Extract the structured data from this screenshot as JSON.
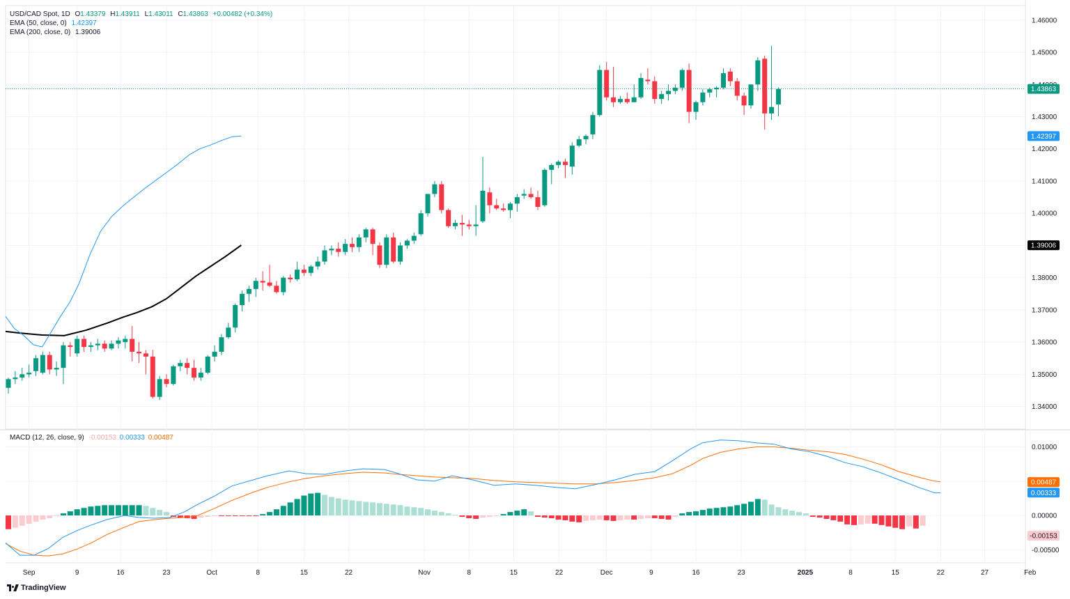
{
  "header": {
    "symbol": "USD/CAD Spot, 1D",
    "open_label": "O",
    "open": "1.43379",
    "high_label": "H",
    "high": "1.43911",
    "low_label": "L",
    "low": "1.43011",
    "close_label": "C",
    "close": "1.43863",
    "change": "+0.00482 (+0.34%)"
  },
  "ema50": {
    "label": "EMA (50, close, 0)",
    "value": "1.42397",
    "color": "#2196f3"
  },
  "ema200": {
    "label": "EMA (200, close, 0)",
    "value": "1.39006",
    "color": "#000000"
  },
  "macd": {
    "label": "MACD (12, 26, close, 9)",
    "hist_value": "-0.00153",
    "macd_value": "0.00333",
    "signal_value": "0.00487",
    "macd_color": "#2196f3",
    "signal_color": "#ff6d00"
  },
  "branding": "TradingView",
  "colors": {
    "up": "#089981",
    "down": "#f23645",
    "up_light": "#acdfd3",
    "down_light": "#fccbcd",
    "grid": "#f0f3fa"
  },
  "chart_data": {
    "type": "candlestick",
    "title": "USD/CAD Spot, 1D",
    "price_axis": {
      "ylim": [
        1.333,
        1.4645
      ],
      "ticks": [
        "1.46000",
        "1.45000",
        "1.44000",
        "1.43000",
        "1.42000",
        "1.41000",
        "1.40000",
        "1.39000",
        "1.38000",
        "1.37000",
        "1.36000",
        "1.35000",
        "1.34000"
      ]
    },
    "macd_axis": {
      "ylim": [
        -0.0067,
        0.0124
      ],
      "ticks": [
        "0.01000",
        "0.00500",
        "0.00000",
        "-0.00500"
      ]
    },
    "x_ticks": [
      "Sep",
      "9",
      "16",
      "23",
      "Oct",
      "8",
      "15",
      "22",
      "Nov",
      "8",
      "15",
      "22",
      "Dec",
      "9",
      "16",
      "23",
      "2025",
      "8",
      "15",
      "22",
      "27",
      "Feb"
    ],
    "last_price_label": "1.43863",
    "ema50_label": "1.42397",
    "ema200_label": "1.39006",
    "macd_hist_label": "-0.00153",
    "macd_label": "0.00333",
    "signal_label": "0.00487",
    "candles": [
      [
        1.3458,
        1.349,
        1.344,
        1.3485
      ],
      [
        1.3485,
        1.351,
        1.347,
        1.349
      ],
      [
        1.349,
        1.352,
        1.348,
        1.35
      ],
      [
        1.35,
        1.353,
        1.349,
        1.3505
      ],
      [
        1.351,
        1.356,
        1.3495,
        1.355
      ],
      [
        1.3505,
        1.357,
        1.35,
        1.356
      ],
      [
        1.356,
        1.357,
        1.35,
        1.3515
      ],
      [
        1.3515,
        1.354,
        1.3495,
        1.352
      ],
      [
        1.352,
        1.36,
        1.347,
        1.359
      ],
      [
        1.359,
        1.36,
        1.3555,
        1.3585
      ],
      [
        1.3565,
        1.362,
        1.3555,
        1.361
      ],
      [
        1.361,
        1.362,
        1.357,
        1.3585
      ],
      [
        1.3585,
        1.36,
        1.357,
        1.359
      ],
      [
        1.359,
        1.361,
        1.3575,
        1.3595
      ],
      [
        1.3595,
        1.3605,
        1.357,
        1.358
      ],
      [
        1.358,
        1.3605,
        1.3575,
        1.3595
      ],
      [
        1.3595,
        1.3615,
        1.358,
        1.3605
      ],
      [
        1.36,
        1.362,
        1.358,
        1.361
      ],
      [
        1.361,
        1.365,
        1.354,
        1.357
      ],
      [
        1.357,
        1.36,
        1.3535,
        1.3565
      ],
      [
        1.3565,
        1.3575,
        1.35,
        1.3555
      ],
      [
        1.3555,
        1.3575,
        1.3425,
        1.343
      ],
      [
        1.343,
        1.3495,
        1.342,
        1.3485
      ],
      [
        1.3485,
        1.35,
        1.346,
        1.347
      ],
      [
        1.347,
        1.353,
        1.3465,
        1.3525
      ],
      [
        1.3525,
        1.3545,
        1.351,
        1.3535
      ],
      [
        1.3535,
        1.355,
        1.35,
        1.352
      ],
      [
        1.352,
        1.3545,
        1.348,
        1.349
      ],
      [
        1.349,
        1.352,
        1.348,
        1.3505
      ],
      [
        1.3505,
        1.356,
        1.35,
        1.3555
      ],
      [
        1.3555,
        1.359,
        1.354,
        1.357
      ],
      [
        1.357,
        1.3625,
        1.356,
        1.3615
      ],
      [
        1.3615,
        1.366,
        1.361,
        1.3645
      ],
      [
        1.3645,
        1.372,
        1.363,
        1.3715
      ],
      [
        1.3715,
        1.376,
        1.3695,
        1.375
      ],
      [
        1.375,
        1.3775,
        1.3725,
        1.3765
      ],
      [
        1.3765,
        1.38,
        1.374,
        1.379
      ],
      [
        1.379,
        1.382,
        1.376,
        1.3785
      ],
      [
        1.3785,
        1.384,
        1.377,
        1.3775
      ],
      [
        1.3775,
        1.379,
        1.375,
        1.3755
      ],
      [
        1.3755,
        1.3805,
        1.3745,
        1.38
      ],
      [
        1.38,
        1.381,
        1.3785,
        1.3795
      ],
      [
        1.3795,
        1.385,
        1.379,
        1.3825
      ],
      [
        1.3825,
        1.384,
        1.3805,
        1.3815
      ],
      [
        1.3815,
        1.384,
        1.3805,
        1.3835
      ],
      [
        1.3835,
        1.3865,
        1.3825,
        1.385
      ],
      [
        1.385,
        1.39,
        1.384,
        1.3885
      ],
      [
        1.3885,
        1.39,
        1.387,
        1.389
      ],
      [
        1.389,
        1.391,
        1.3865,
        1.388
      ],
      [
        1.388,
        1.392,
        1.387,
        1.3905
      ],
      [
        1.3905,
        1.3925,
        1.388,
        1.3895
      ],
      [
        1.3895,
        1.3935,
        1.388,
        1.3925
      ],
      [
        1.3925,
        1.3955,
        1.391,
        1.395
      ],
      [
        1.395,
        1.3955,
        1.387,
        1.3905
      ],
      [
        1.39,
        1.391,
        1.383,
        1.384
      ],
      [
        1.384,
        1.3935,
        1.383,
        1.3925
      ],
      [
        1.3925,
        1.394,
        1.3845,
        1.385
      ],
      [
        1.385,
        1.391,
        1.384,
        1.39
      ],
      [
        1.39,
        1.392,
        1.389,
        1.3915
      ],
      [
        1.3915,
        1.394,
        1.3905,
        1.393
      ],
      [
        1.3935,
        1.401,
        1.393,
        1.4
      ],
      [
        1.4,
        1.406,
        1.399,
        1.406
      ],
      [
        1.406,
        1.41,
        1.405,
        1.409
      ],
      [
        1.409,
        1.41,
        1.4,
        1.401
      ],
      [
        1.401,
        1.4015,
        1.3955,
        1.396
      ],
      [
        1.396,
        1.398,
        1.395,
        1.397
      ],
      [
        1.397,
        1.3995,
        1.393,
        1.3965
      ],
      [
        1.3965,
        1.398,
        1.395,
        1.396
      ],
      [
        1.396,
        1.4025,
        1.393,
        1.3965
      ],
      [
        1.3975,
        1.4175,
        1.397,
        1.407
      ],
      [
        1.4065,
        1.408,
        1.4,
        1.4025
      ],
      [
        1.4025,
        1.4045,
        1.401,
        1.4015
      ],
      [
        1.4015,
        1.403,
        1.4005,
        1.401
      ],
      [
        1.401,
        1.4035,
        1.3985,
        1.403
      ],
      [
        1.403,
        1.406,
        1.4005,
        1.405
      ],
      [
        1.4055,
        1.4075,
        1.4045,
        1.406
      ],
      [
        1.406,
        1.408,
        1.4045,
        1.405
      ],
      [
        1.405,
        1.407,
        1.401,
        1.402
      ],
      [
        1.4025,
        1.414,
        1.402,
        1.4135
      ],
      [
        1.4135,
        1.4155,
        1.409,
        1.415
      ],
      [
        1.415,
        1.4165,
        1.414,
        1.416
      ],
      [
        1.416,
        1.417,
        1.411,
        1.415
      ],
      [
        1.4145,
        1.422,
        1.412,
        1.421
      ],
      [
        1.421,
        1.424,
        1.4205,
        1.423
      ],
      [
        1.423,
        1.4245,
        1.4215,
        1.424
      ],
      [
        1.4245,
        1.4315,
        1.423,
        1.4305
      ],
      [
        1.4305,
        1.446,
        1.43,
        1.4445
      ],
      [
        1.4445,
        1.447,
        1.435,
        1.436
      ],
      [
        1.436,
        1.4455,
        1.433,
        1.4345
      ],
      [
        1.4345,
        1.4365,
        1.434,
        1.4355
      ],
      [
        1.4355,
        1.4375,
        1.434,
        1.4345
      ],
      [
        1.4345,
        1.44,
        1.4345,
        1.436
      ],
      [
        1.436,
        1.4435,
        1.4355,
        1.442
      ],
      [
        1.4415,
        1.445,
        1.44,
        1.441
      ],
      [
        1.441,
        1.4425,
        1.434,
        1.4355
      ],
      [
        1.4355,
        1.438,
        1.434,
        1.437
      ],
      [
        1.437,
        1.44,
        1.435,
        1.438
      ],
      [
        1.438,
        1.44,
        1.437,
        1.439
      ],
      [
        1.439,
        1.445,
        1.438,
        1.4445
      ],
      [
        1.4445,
        1.4465,
        1.428,
        1.4315
      ],
      [
        1.4315,
        1.435,
        1.429,
        1.4345
      ],
      [
        1.4345,
        1.4385,
        1.4335,
        1.4375
      ],
      [
        1.4375,
        1.439,
        1.436,
        1.4385
      ],
      [
        1.4385,
        1.4395,
        1.436,
        1.439
      ],
      [
        1.439,
        1.445,
        1.4385,
        1.4435
      ],
      [
        1.444,
        1.445,
        1.4395,
        1.441
      ],
      [
        1.441,
        1.442,
        1.435,
        1.4365
      ],
      [
        1.4365,
        1.4375,
        1.4305,
        1.4335
      ],
      [
        1.4335,
        1.44,
        1.4325,
        1.44
      ],
      [
        1.44,
        1.4485,
        1.438,
        1.4475
      ],
      [
        1.448,
        1.449,
        1.426,
        1.431
      ],
      [
        1.431,
        1.452,
        1.429,
        1.433
      ],
      [
        1.4338,
        1.4391,
        1.4301,
        1.4386
      ]
    ],
    "ema50": [
      [
        0,
        1.368
      ],
      [
        12,
        1.3642
      ],
      [
        25,
        1.362
      ],
      [
        38,
        1.3592
      ],
      [
        50,
        1.3585
      ],
      [
        62,
        1.363
      ],
      [
        75,
        1.368
      ],
      [
        88,
        1.3725
      ],
      [
        100,
        1.378
      ],
      [
        115,
        1.387
      ],
      [
        130,
        1.3945
      ],
      [
        145,
        1.399
      ],
      [
        160,
        1.4022
      ],
      [
        175,
        1.405
      ],
      [
        190,
        1.4077
      ],
      [
        205,
        1.4102
      ],
      [
        220,
        1.4127
      ],
      [
        235,
        1.4152
      ],
      [
        250,
        1.418
      ],
      [
        265,
        1.42
      ],
      [
        280,
        1.4212
      ],
      [
        295,
        1.4226
      ],
      [
        310,
        1.4238
      ],
      [
        322,
        1.424
      ]
    ],
    "ema200": [
      [
        0,
        1.3633
      ],
      [
        20,
        1.3628
      ],
      [
        50,
        1.3622
      ],
      [
        80,
        1.362
      ],
      [
        110,
        1.3637
      ],
      [
        140,
        1.366
      ],
      [
        160,
        1.3677
      ],
      [
        180,
        1.3692
      ],
      [
        200,
        1.371
      ],
      [
        220,
        1.3735
      ],
      [
        240,
        1.377
      ],
      [
        260,
        1.3805
      ],
      [
        280,
        1.3835
      ],
      [
        300,
        1.3865
      ],
      [
        322,
        1.3901
      ]
    ],
    "macd_line": [
      [
        0,
        -0.004
      ],
      [
        12,
        -0.0058
      ],
      [
        24,
        -0.0058
      ],
      [
        36,
        -0.0048
      ],
      [
        48,
        -0.0032
      ],
      [
        60,
        -0.0022
      ],
      [
        72,
        -0.0014
      ],
      [
        85,
        -0.0006
      ],
      [
        100,
        0.0
      ],
      [
        112,
        -0.0003
      ],
      [
        125,
        -0.0004
      ],
      [
        138,
        -0.0003
      ],
      [
        150,
        0.0005
      ],
      [
        160,
        0.0015
      ],
      [
        175,
        0.0028
      ],
      [
        190,
        0.0043
      ],
      [
        208,
        0.0052
      ],
      [
        220,
        0.0058
      ],
      [
        238,
        0.0065
      ],
      [
        252,
        0.0061
      ],
      [
        268,
        0.006
      ],
      [
        285,
        0.0065
      ],
      [
        300,
        0.0068
      ],
      [
        318,
        0.0067
      ],
      [
        330,
        0.0061
      ],
      [
        345,
        0.0052
      ],
      [
        360,
        0.005
      ],
      [
        375,
        0.0058
      ],
      [
        392,
        0.0052
      ],
      [
        410,
        0.0044
      ],
      [
        428,
        0.0046
      ],
      [
        445,
        0.0044
      ],
      [
        462,
        0.0041
      ],
      [
        478,
        0.0039
      ],
      [
        495,
        0.0045
      ],
      [
        512,
        0.0052
      ],
      [
        528,
        0.006
      ],
      [
        545,
        0.0064
      ],
      [
        560,
        0.008
      ],
      [
        575,
        0.0097
      ],
      [
        585,
        0.0106
      ],
      [
        600,
        0.011
      ],
      [
        615,
        0.0109
      ],
      [
        630,
        0.0106
      ],
      [
        645,
        0.0104
      ],
      [
        660,
        0.0097
      ],
      [
        675,
        0.0093
      ],
      [
        690,
        0.0086
      ],
      [
        705,
        0.0077
      ],
      [
        720,
        0.0071
      ],
      [
        735,
        0.0062
      ],
      [
        750,
        0.0052
      ],
      [
        768,
        0.004
      ],
      [
        780,
        0.0033
      ],
      [
        785,
        0.0033
      ]
    ],
    "signal_line": [
      [
        0,
        -0.0041
      ],
      [
        12,
        -0.0052
      ],
      [
        24,
        -0.0058
      ],
      [
        36,
        -0.0059
      ],
      [
        48,
        -0.0056
      ],
      [
        60,
        -0.0049
      ],
      [
        72,
        -0.004
      ],
      [
        85,
        -0.0028
      ],
      [
        100,
        -0.0017
      ],
      [
        112,
        -0.0009
      ],
      [
        125,
        -0.0006
      ],
      [
        138,
        -0.0004
      ],
      [
        150,
        -0.0003
      ],
      [
        160,
        -0.0001
      ],
      [
        175,
        0.001
      ],
      [
        190,
        0.0022
      ],
      [
        208,
        0.0034
      ],
      [
        220,
        0.0041
      ],
      [
        238,
        0.0049
      ],
      [
        252,
        0.0054
      ],
      [
        268,
        0.0058
      ],
      [
        285,
        0.0061
      ],
      [
        300,
        0.0063
      ],
      [
        318,
        0.0062
      ],
      [
        330,
        0.006
      ],
      [
        345,
        0.0058
      ],
      [
        360,
        0.0056
      ],
      [
        375,
        0.0055
      ],
      [
        392,
        0.0054
      ],
      [
        410,
        0.0051
      ],
      [
        428,
        0.0049
      ],
      [
        445,
        0.0048
      ],
      [
        462,
        0.0047
      ],
      [
        478,
        0.0046
      ],
      [
        495,
        0.0046
      ],
      [
        512,
        0.0048
      ],
      [
        528,
        0.0051
      ],
      [
        545,
        0.0055
      ],
      [
        560,
        0.0061
      ],
      [
        575,
        0.0073
      ],
      [
        585,
        0.0083
      ],
      [
        600,
        0.0092
      ],
      [
        615,
        0.0097
      ],
      [
        630,
        0.01
      ],
      [
        645,
        0.01
      ],
      [
        660,
        0.0098
      ],
      [
        675,
        0.0095
      ],
      [
        690,
        0.0093
      ],
      [
        705,
        0.0089
      ],
      [
        720,
        0.0082
      ],
      [
        735,
        0.0074
      ],
      [
        750,
        0.0064
      ],
      [
        768,
        0.0055
      ],
      [
        780,
        0.005
      ],
      [
        785,
        0.0049
      ]
    ],
    "macd_hist": [
      -0.002,
      -0.0018,
      -0.0015,
      -0.0012,
      -0.0009,
      -0.0006,
      -0.0004,
      -0.0001,
      0.0003,
      0.0006,
      0.0009,
      0.0011,
      0.0013,
      0.0014,
      0.0015,
      0.0015,
      0.0015,
      0.0015,
      0.0015,
      0.0015,
      0.0014,
      0.0011,
      0.0008,
      0.0005,
      -0.0002,
      -0.0003,
      -0.0004,
      -0.0005,
      -0.0003,
      -0.0002,
      -0.0001,
      -0.0001,
      -0.0001,
      -0.0001,
      -0.0001,
      -0.0001,
      -0.0001,
      0.0002,
      0.0005,
      0.0009,
      0.0014,
      0.0019,
      0.0024,
      0.0029,
      0.0032,
      0.0033,
      0.003,
      0.0027,
      0.0025,
      0.0023,
      0.0022,
      0.0021,
      0.002,
      0.0019,
      0.0018,
      0.0017,
      0.0016,
      0.0015,
      0.0013,
      0.0012,
      0.0011,
      0.0009,
      0.0007,
      0.0005,
      0.0003,
      0.0001,
      -0.0002,
      -0.0004,
      -0.0005,
      -0.0003,
      -0.0002,
      -0.0001,
      0.0002,
      0.0005,
      0.0007,
      0.0009,
      0.0006,
      -0.0002,
      -0.0003,
      -0.0004,
      -0.0006,
      -0.0007,
      -0.0009,
      -0.001,
      -0.0008,
      -0.0007,
      -0.0006,
      -0.0007,
      -0.0008,
      -0.0007,
      -0.0006,
      -0.0006,
      -0.0005,
      -0.0004,
      -0.0004,
      -0.0005,
      -0.0006,
      -0.0002,
      0.0003,
      0.0005,
      0.0006,
      0.0008,
      0.001,
      0.0011,
      0.0012,
      0.0013,
      0.0015,
      0.0017,
      0.002,
      0.0024,
      0.0023,
      0.0016,
      0.0012,
      0.0009,
      0.0007,
      0.0005,
      0.0003,
      -0.0002,
      -0.0003,
      -0.0005,
      -0.0007,
      -0.0009,
      -0.0013,
      -0.0014,
      -0.0013,
      -0.0012,
      -0.0012,
      -0.0014,
      -0.0016,
      -0.0018,
      -0.002,
      -0.0016,
      -0.0019,
      -0.0015
    ]
  }
}
